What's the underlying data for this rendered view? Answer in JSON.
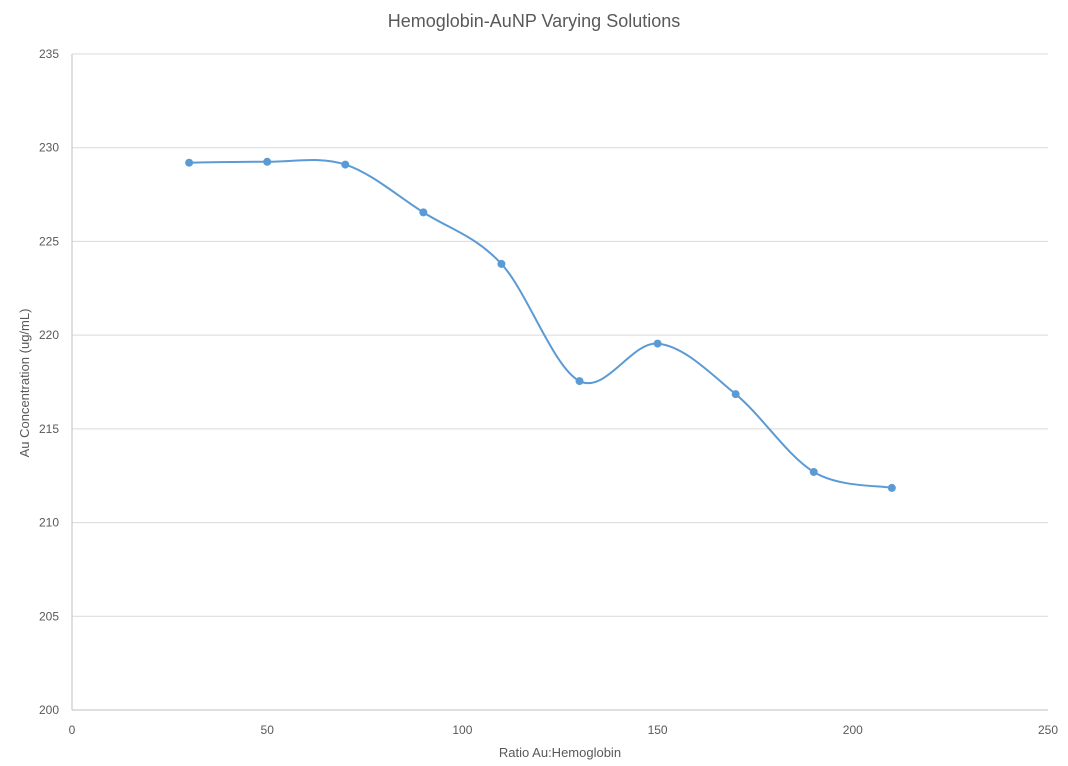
{
  "chart_data": {
    "type": "line",
    "title": "Hemoglobin-AuNP Varying Solutions",
    "xlabel": "Ratio Au:Hemoglobin",
    "ylabel": "Au Concentration (ug/mL)",
    "xlim": [
      0,
      250
    ],
    "ylim": [
      200,
      235
    ],
    "x_ticks": [
      0,
      50,
      100,
      150,
      200,
      250
    ],
    "y_ticks": [
      200,
      205,
      210,
      215,
      220,
      225,
      230,
      235
    ],
    "grid": true,
    "smooth": true,
    "series_color": "#5b9bd5",
    "series": [
      {
        "points": [
          {
            "x": 30,
            "y": 229.2
          },
          {
            "x": 50,
            "y": 229.25
          },
          {
            "x": 70,
            "y": 229.1
          },
          {
            "x": 90,
            "y": 226.55
          },
          {
            "x": 110,
            "y": 223.8
          },
          {
            "x": 130,
            "y": 217.55
          },
          {
            "x": 150,
            "y": 219.55
          },
          {
            "x": 170,
            "y": 216.85
          },
          {
            "x": 190,
            "y": 212.7
          },
          {
            "x": 210,
            "y": 211.85
          }
        ]
      }
    ]
  }
}
